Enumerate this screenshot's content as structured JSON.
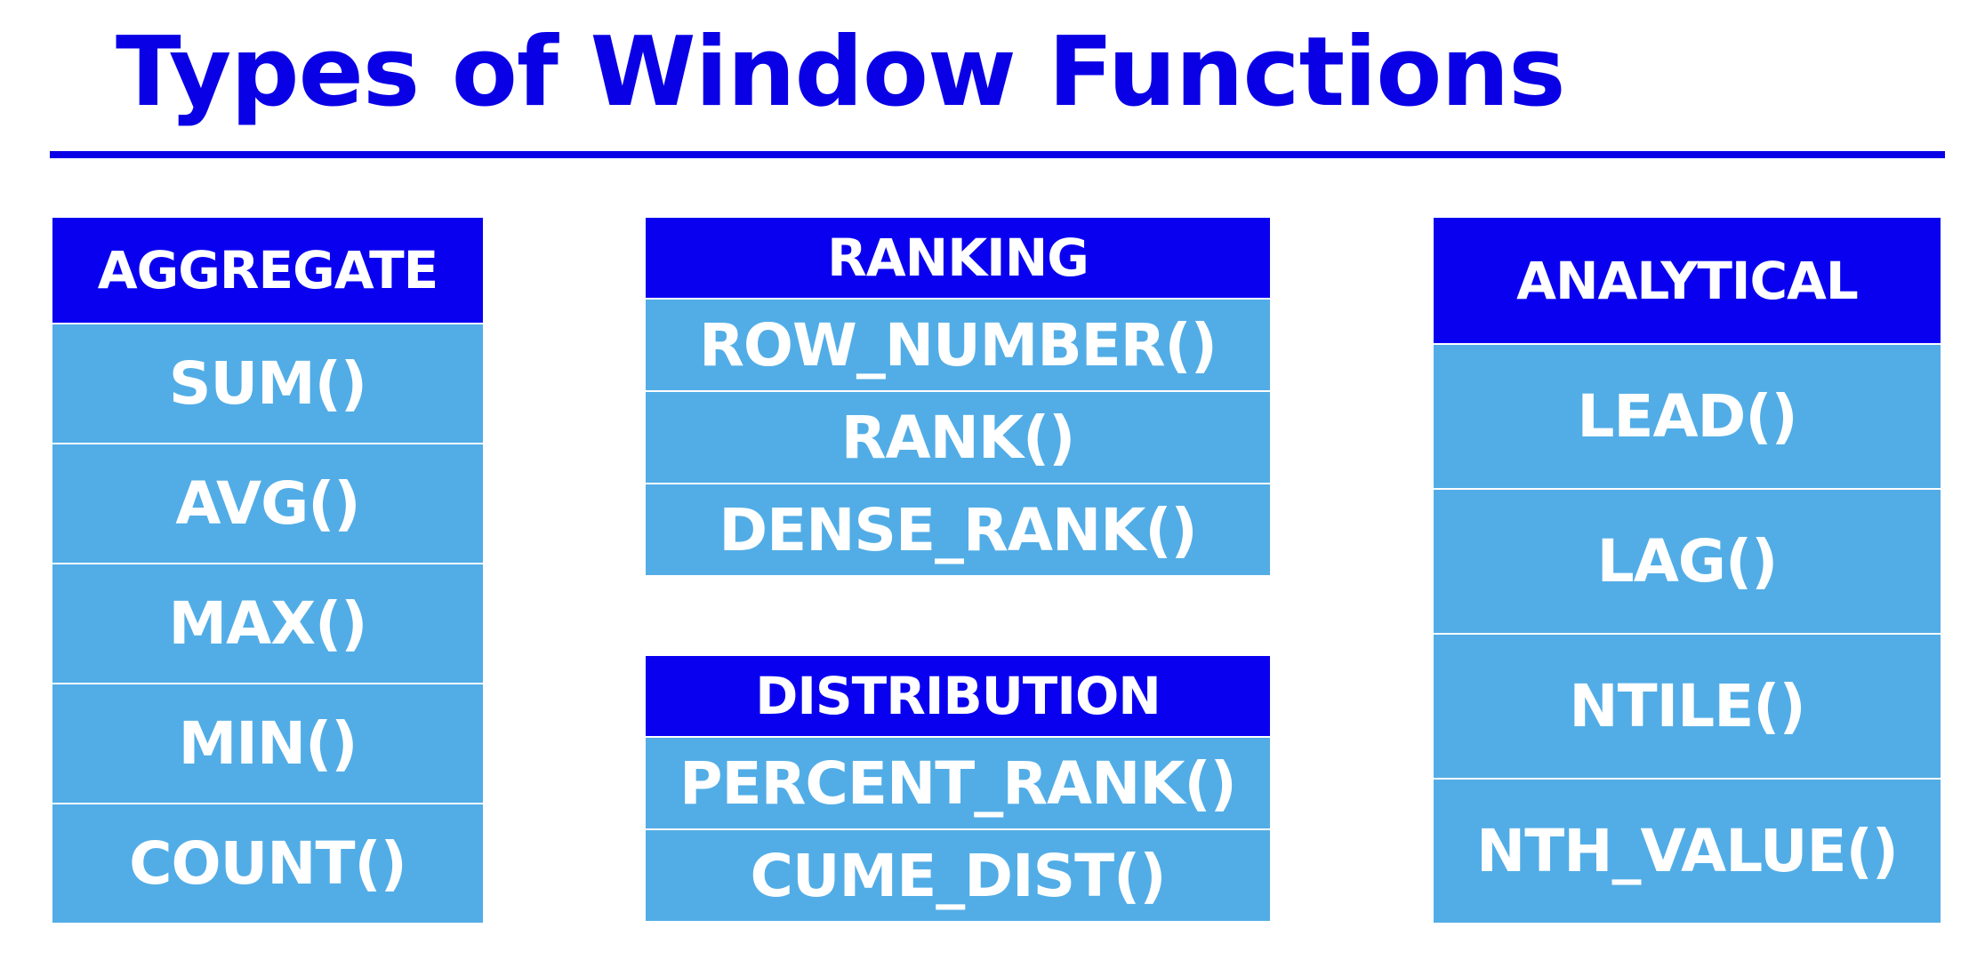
{
  "title": "Types of Window Functions",
  "colors": {
    "title": "#0a00e6",
    "rule": "#0a00e6",
    "header_bg": "#0a00f0",
    "row_bg": "#52ade6",
    "text_on_cells": "#ffffff"
  },
  "tables": {
    "aggregate": {
      "header": "AGGREGATE",
      "items": [
        "SUM()",
        "AVG()",
        "MAX()",
        "MIN()",
        "COUNT()"
      ]
    },
    "ranking": {
      "header": "RANKING",
      "items": [
        "ROW_NUMBER()",
        "RANK()",
        "DENSE_RANK()"
      ]
    },
    "distribution": {
      "header": "DISTRIBUTION",
      "items": [
        "PERCENT_RANK()",
        "CUME_DIST()"
      ]
    },
    "analytical": {
      "header": "ANALYTICAL",
      "items": [
        "LEAD()",
        "LAG()",
        "NTILE()",
        "NTH_VALUE()"
      ]
    }
  }
}
